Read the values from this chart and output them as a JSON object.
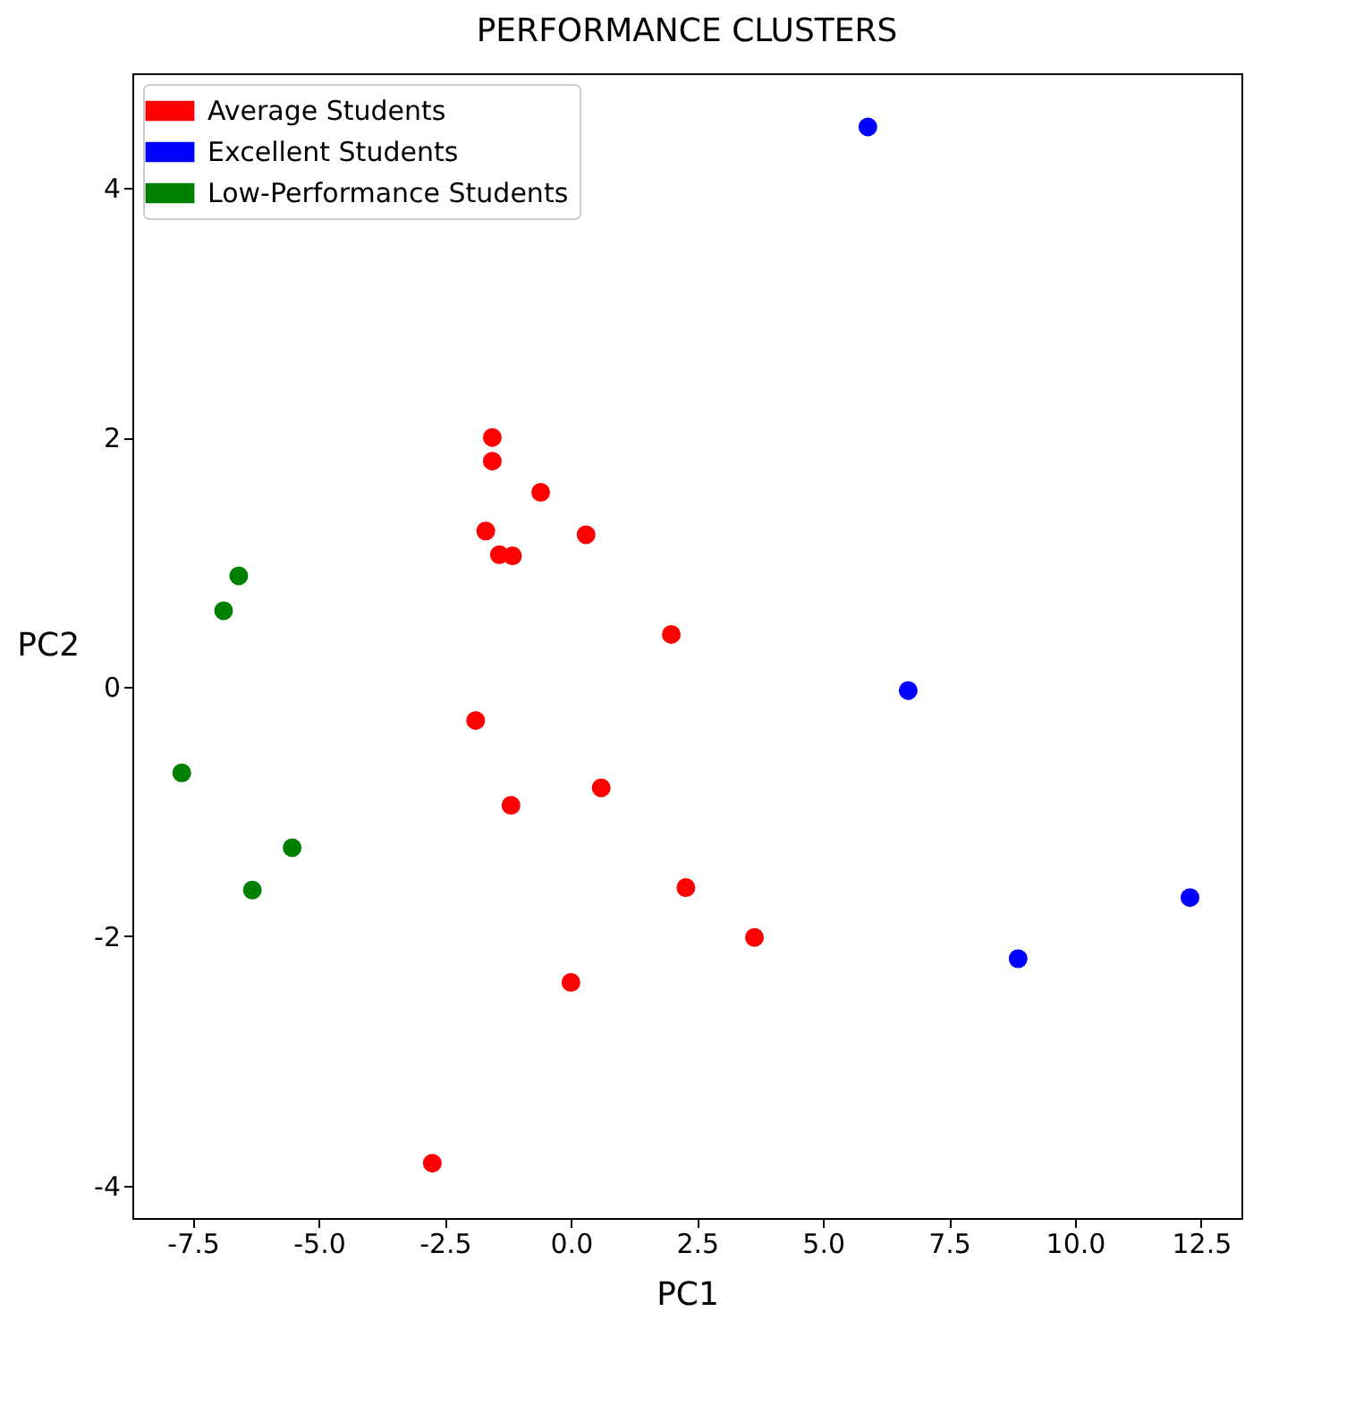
{
  "chart_data": {
    "type": "scatter",
    "title": "PERFORMANCE CLUSTERS",
    "xlabel": "PC1",
    "ylabel": "PC2",
    "xlim": [
      -8.7,
      13.3
    ],
    "ylim": [
      -4.26,
      4.92
    ],
    "xticks": [
      {
        "value": -7.5,
        "label": "-7.5"
      },
      {
        "value": -5,
        "label": "-5.0"
      },
      {
        "value": -2.5,
        "label": "-2.5"
      },
      {
        "value": 0,
        "label": "0.0"
      },
      {
        "value": 2.5,
        "label": "2.5"
      },
      {
        "value": 5,
        "label": "5.0"
      },
      {
        "value": 7.5,
        "label": "7.5"
      },
      {
        "value": 10,
        "label": "10.0"
      },
      {
        "value": 12.5,
        "label": "12.5"
      }
    ],
    "yticks": [
      -4,
      -2,
      0,
      2,
      4
    ],
    "grid": false,
    "legend": "top left",
    "marker": "circle",
    "series": [
      {
        "name": "Average Students",
        "color": "#ff0000",
        "x": [
          -1.56,
          -1.56,
          -0.6,
          -1.69,
          -1.42,
          -1.16,
          0.3,
          1.99,
          -1.89,
          -1.19,
          0.6,
          2.28,
          3.64,
          0.0,
          -2.75
        ],
        "values": [
          2.0,
          1.81,
          1.56,
          1.25,
          1.06,
          1.05,
          1.22,
          0.42,
          -0.27,
          -0.95,
          -0.81,
          -1.61,
          -2.01,
          -2.37,
          -3.82
        ]
      },
      {
        "name": "Excellent Students",
        "color": "#0000ff",
        "x": [
          5.89,
          6.69,
          8.87,
          12.28
        ],
        "values": [
          4.49,
          -0.03,
          -2.18,
          -1.69
        ]
      },
      {
        "name": "Low-Performance Students",
        "color": "#008000",
        "x": [
          -6.59,
          -6.89,
          -7.72,
          -5.53,
          -6.32
        ],
        "values": [
          0.89,
          0.61,
          -0.69,
          -1.29,
          -1.63
        ]
      }
    ]
  }
}
